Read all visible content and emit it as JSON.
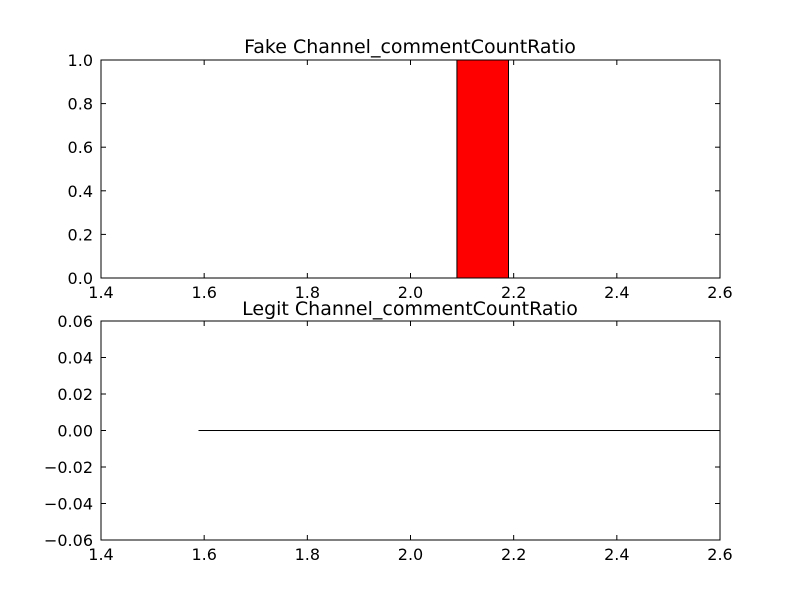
{
  "chart_data": [
    {
      "type": "bar",
      "title": "Fake Channel_commentCountRatio",
      "xlabel": "",
      "ylabel": "",
      "xlim": [
        1.4,
        2.6
      ],
      "ylim": [
        0.0,
        1.0
      ],
      "x_ticks": [
        "1.4",
        "1.6",
        "1.8",
        "2.0",
        "2.2",
        "2.4",
        "2.6"
      ],
      "y_ticks": [
        "0.0",
        "0.2",
        "0.4",
        "0.6",
        "0.8",
        "1.0"
      ],
      "bars": [
        {
          "x_start": 1.59,
          "x_end": 1.69,
          "value": 0.0
        },
        {
          "x_start": 2.09,
          "x_end": 2.19,
          "value": 1.0
        }
      ],
      "bar_color": "#ff0000",
      "edge_color": "#000000",
      "grid": false
    },
    {
      "type": "bar",
      "title": "Legit Channel_commentCountRatio",
      "xlabel": "",
      "ylabel": "",
      "xlim": [
        1.4,
        2.6
      ],
      "ylim": [
        -0.06,
        0.06
      ],
      "x_ticks": [
        "1.4",
        "1.6",
        "1.8",
        "2.0",
        "2.2",
        "2.4",
        "2.6"
      ],
      "y_ticks": [
        "−0.06",
        "−0.04",
        "−0.02",
        "0.00",
        "0.02",
        "0.04",
        "0.06"
      ],
      "bars": [
        {
          "x_start": 1.59,
          "x_end": 1.69,
          "value": 0.0
        },
        {
          "x_start": 1.69,
          "x_end": 2.6,
          "value": 0.0
        }
      ],
      "bar_color": "#ff0000",
      "edge_color": "#000000",
      "grid": false
    }
  ]
}
